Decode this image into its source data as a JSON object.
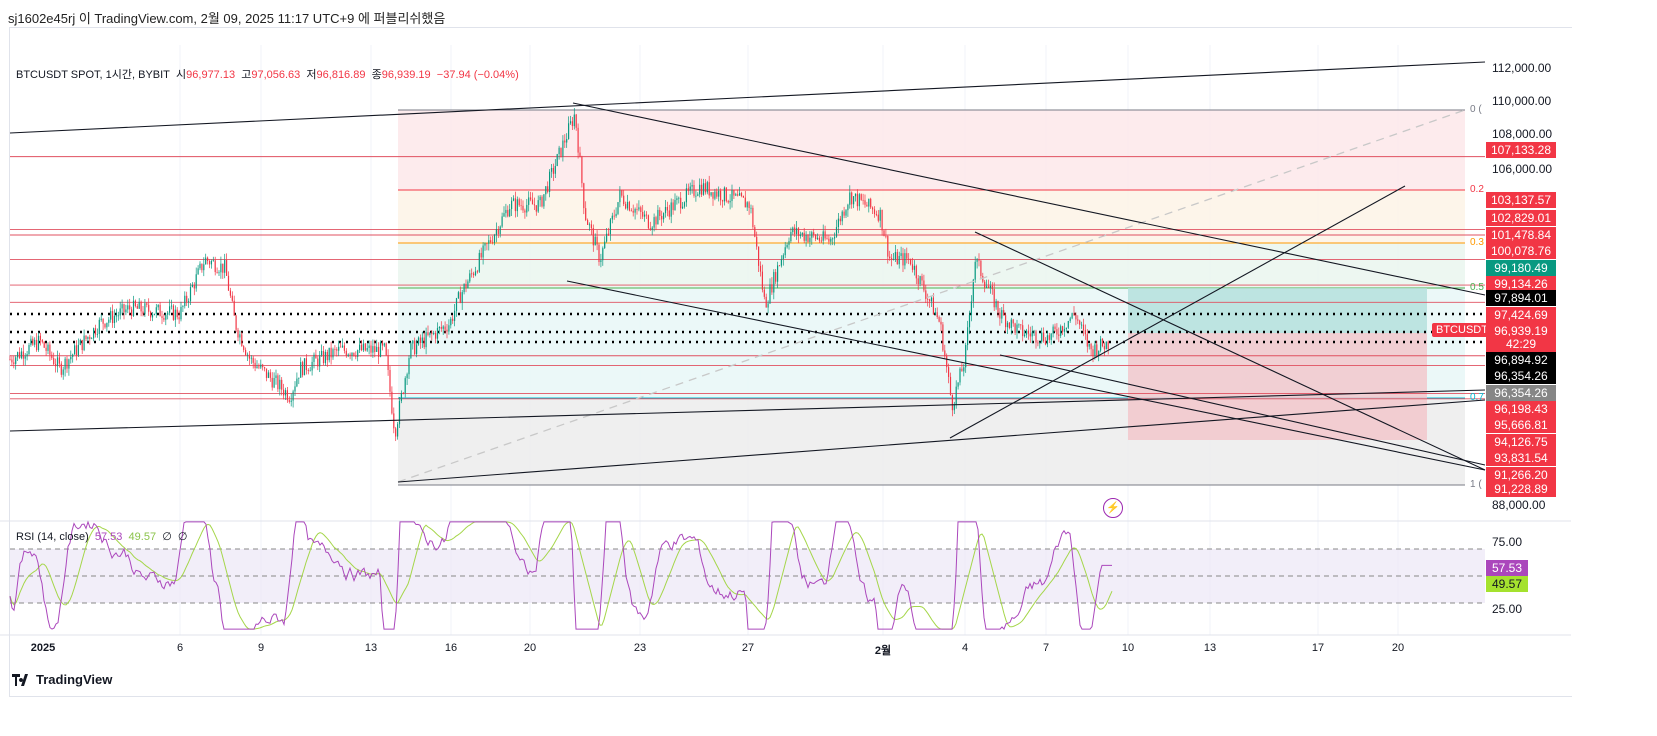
{
  "published": "sj1602e45rj 이 TradingView.com, 2월 09, 2025 11:17 UTC+9 에 퍼블리쉬했음",
  "legend": {
    "symbol": "BTCUSDT SPOT, 1시간, BYBIT",
    "o_label": "시",
    "o": "96,977.13",
    "h_label": "고",
    "h": "97,056.63",
    "l_label": "저",
    "l": "96,816.89",
    "c_label": "종",
    "c": "96,939.19",
    "change": "−37.94 (−0.04%)"
  },
  "rsi_legend": {
    "name": "RSI (14, close)",
    "rsi": "57.53",
    "ma": "49.57",
    "x1": "∅",
    "x2": "∅"
  },
  "price_labels": [
    {
      "text": "112,000.00",
      "kind": "plain"
    },
    {
      "text": "110,000.00",
      "kind": "plain"
    },
    {
      "text": "108,000.00",
      "kind": "plain"
    },
    {
      "text": "107,133.28",
      "kind": "red"
    },
    {
      "text": "106,000.00",
      "kind": "plain"
    },
    {
      "text": "103,137.57",
      "kind": "red"
    },
    {
      "text": "102,829.01",
      "kind": "red"
    },
    {
      "text": "101,478.84",
      "kind": "red"
    },
    {
      "text": "100,078.76",
      "kind": "red"
    },
    {
      "text": "99,180.49",
      "kind": "green"
    },
    {
      "text": "99,134.26",
      "kind": "red"
    },
    {
      "text": "97,894.01",
      "kind": "black"
    },
    {
      "text": "97,424.69",
      "kind": "red"
    },
    {
      "text": "96,939.19",
      "kind": "red"
    },
    {
      "text": "42:29",
      "kind": "red"
    },
    {
      "text": "96,894.92",
      "kind": "black"
    },
    {
      "text": "96,354.26",
      "kind": "black"
    },
    {
      "text": "96,354.26",
      "kind": "gray"
    },
    {
      "text": "96,198.43",
      "kind": "red"
    },
    {
      "text": "95,666.81",
      "kind": "red"
    },
    {
      "text": "94,126.75",
      "kind": "red"
    },
    {
      "text": "93,831.54",
      "kind": "red"
    },
    {
      "text": "91,266.20",
      "kind": "red"
    },
    {
      "text": "91,228.89",
      "kind": "red"
    },
    {
      "text": "88,000.00",
      "kind": "plain"
    }
  ],
  "rsi_labels": [
    {
      "text": "75.00",
      "kind": "plain"
    },
    {
      "text": "57.53",
      "kind": "rsi"
    },
    {
      "text": "49.57",
      "kind": "ma"
    },
    {
      "text": "25.00",
      "kind": "plain"
    }
  ],
  "symbol_tag": "BTCUSDT",
  "fib_labels": [
    "0 (",
    "0.2",
    "0.3",
    "0.5",
    "0.7",
    "1 ("
  ],
  "x_labels": [
    "2025",
    "6",
    "9",
    "13",
    "16",
    "20",
    "23",
    "27",
    "2월",
    "4",
    "7",
    "10",
    "13",
    "17",
    "20"
  ],
  "footer": "TradingView",
  "colors": {
    "up": "#089981",
    "down": "#f23645",
    "rsi": "#ab47bc",
    "rsi_ma": "#a5d64a"
  },
  "chart_data": {
    "type": "candlestick",
    "symbol": "BTCUSDT",
    "interval": "1h",
    "ylim": [
      88000,
      112000
    ],
    "price_path": [
      [
        10,
        96000
      ],
      [
        40,
        97000
      ],
      [
        60,
        95500
      ],
      [
        100,
        98000
      ],
      [
        130,
        98800
      ],
      [
        180,
        98500
      ],
      [
        205,
        101500
      ],
      [
        225,
        101000
      ],
      [
        235,
        98000
      ],
      [
        250,
        96000
      ],
      [
        290,
        94000
      ],
      [
        300,
        95500
      ],
      [
        340,
        96500
      ],
      [
        385,
        96500
      ],
      [
        395,
        92000
      ],
      [
        410,
        96500
      ],
      [
        450,
        98000
      ],
      [
        460,
        99500
      ],
      [
        510,
        104500
      ],
      [
        540,
        104500
      ],
      [
        575,
        109500
      ],
      [
        585,
        104000
      ],
      [
        600,
        101500
      ],
      [
        620,
        105000
      ],
      [
        650,
        103500
      ],
      [
        700,
        105500
      ],
      [
        750,
        104500
      ],
      [
        765,
        99000
      ],
      [
        790,
        103000
      ],
      [
        830,
        102500
      ],
      [
        850,
        105000
      ],
      [
        880,
        104000
      ],
      [
        890,
        101500
      ],
      [
        910,
        101500
      ],
      [
        940,
        98000
      ],
      [
        952,
        93500
      ],
      [
        965,
        96000
      ],
      [
        975,
        101500
      ],
      [
        1000,
        98500
      ],
      [
        1020,
        97500
      ],
      [
        1050,
        97200
      ],
      [
        1075,
        98500
      ],
      [
        1090,
        96500
      ],
      [
        1110,
        96939
      ]
    ],
    "rsi": {
      "last": 57.53,
      "ma_last": 49.57,
      "bands": [
        25,
        50,
        75
      ]
    }
  }
}
